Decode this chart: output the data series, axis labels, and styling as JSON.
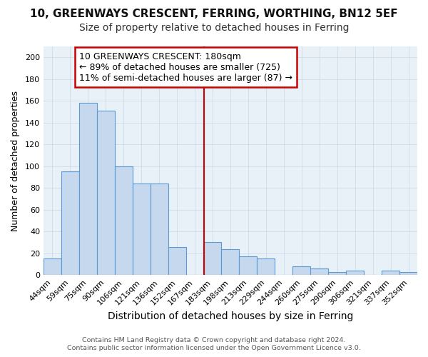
{
  "title1": "10, GREENWAYS CRESCENT, FERRING, WORTHING, BN12 5EF",
  "title2": "Size of property relative to detached houses in Ferring",
  "xlabel": "Distribution of detached houses by size in Ferring",
  "ylabel": "Number of detached properties",
  "footer1": "Contains HM Land Registry data © Crown copyright and database right 2024.",
  "footer2": "Contains public sector information licensed under the Open Government Licence v3.0.",
  "categories": [
    "44sqm",
    "59sqm",
    "75sqm",
    "90sqm",
    "106sqm",
    "121sqm",
    "136sqm",
    "152sqm",
    "167sqm",
    "183sqm",
    "198sqm",
    "213sqm",
    "229sqm",
    "244sqm",
    "260sqm",
    "275sqm",
    "290sqm",
    "306sqm",
    "321sqm",
    "337sqm",
    "352sqm"
  ],
  "values": [
    15,
    95,
    158,
    151,
    100,
    84,
    84,
    26,
    0,
    30,
    24,
    17,
    15,
    0,
    8,
    6,
    3,
    4,
    0,
    4,
    3
  ],
  "bar_color": "#c5d8ee",
  "bar_edge_color": "#5b9bd5",
  "vline_x_index": 9,
  "vline_color": "#cc0000",
  "annotation_text": "10 GREENWAYS CRESCENT: 180sqm\n← 89% of detached houses are smaller (725)\n11% of semi-detached houses are larger (87) →",
  "annotation_box_color": "#ffffff",
  "annotation_border_color": "#cc0000",
  "ylim": [
    0,
    210
  ],
  "yticks": [
    0,
    20,
    40,
    60,
    80,
    100,
    120,
    140,
    160,
    180,
    200
  ],
  "grid_color": "#c8d8e8",
  "background_color": "#ffffff",
  "plot_background": "#e8f0f8",
  "title1_fontsize": 11,
  "title2_fontsize": 10,
  "xlabel_fontsize": 10,
  "ylabel_fontsize": 9,
  "annotation_fontsize": 9,
  "xtick_fontsize": 8,
  "ytick_fontsize": 8
}
